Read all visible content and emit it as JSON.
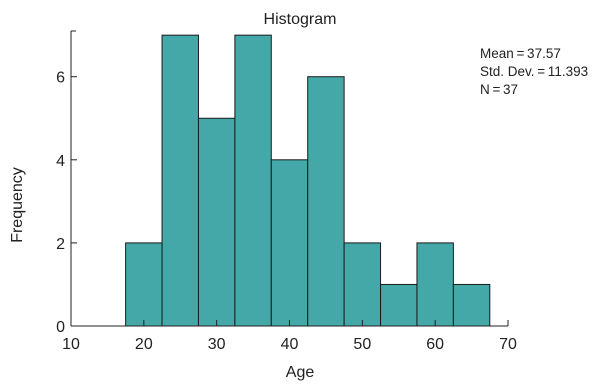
{
  "chart_data": {
    "type": "bar",
    "title": "Histogram",
    "xlabel": "Age",
    "ylabel": "Frequency",
    "bins": [
      {
        "start": 17.5,
        "end": 22.5,
        "count": 2
      },
      {
        "start": 22.5,
        "end": 27.5,
        "count": 7
      },
      {
        "start": 27.5,
        "end": 32.5,
        "count": 5
      },
      {
        "start": 32.5,
        "end": 37.5,
        "count": 7
      },
      {
        "start": 37.5,
        "end": 42.5,
        "count": 4
      },
      {
        "start": 42.5,
        "end": 47.5,
        "count": 6
      },
      {
        "start": 47.5,
        "end": 52.5,
        "count": 2
      },
      {
        "start": 52.5,
        "end": 57.5,
        "count": 1
      },
      {
        "start": 57.5,
        "end": 62.5,
        "count": 2
      },
      {
        "start": 62.5,
        "end": 67.5,
        "count": 1
      }
    ],
    "xlim": [
      10,
      70
    ],
    "ylim": [
      0,
      7.1
    ],
    "xticks": [
      10,
      20,
      30,
      40,
      50,
      60,
      70
    ],
    "yticks": [
      0,
      2,
      4,
      6
    ],
    "grid": false,
    "stats": {
      "mean": "Mean = 37.57",
      "std": "Std. Dev. = 11.393",
      "n": "N = 37"
    },
    "colors": {
      "bar_fill": "#44a8a8",
      "bar_stroke": "#1a1a1a",
      "axis": "#222222"
    }
  }
}
